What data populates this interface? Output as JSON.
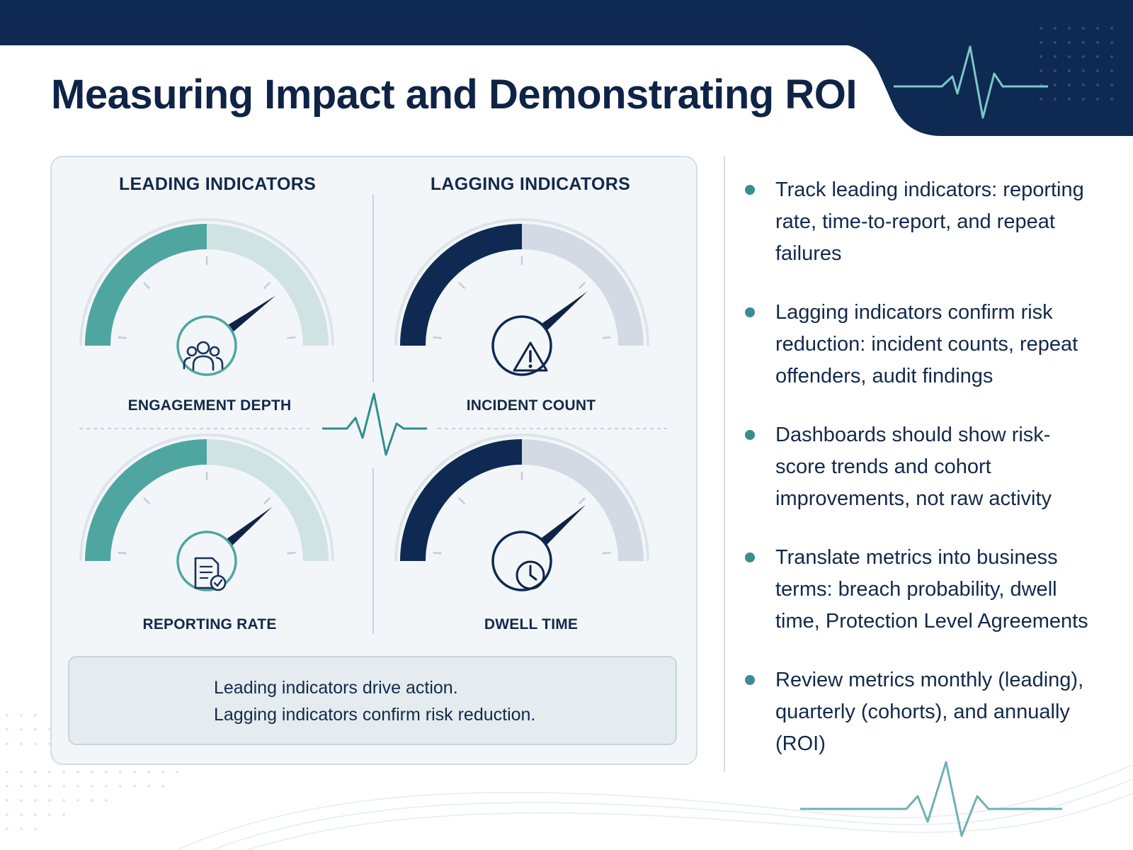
{
  "title": "Measuring Impact and Demonstrating ROI",
  "colors": {
    "navy": "#0f2a52",
    "teal": "#4fa6a1",
    "teal_light": "#cfe3e3",
    "navy_light": "#d3dae3",
    "text": "#13294b"
  },
  "headers": {
    "leading": "LEADING INDICATORS",
    "lagging": "LAGGING INDICATORS"
  },
  "gauges": [
    {
      "label": "ENGAGEMENT DEPTH",
      "group": "leading",
      "value": 0.5,
      "needle": 0.8,
      "icon": "people-icon"
    },
    {
      "label": "INCIDENT COUNT",
      "group": "lagging",
      "value": 0.5,
      "needle": 0.78,
      "icon": "warning-icon"
    },
    {
      "label": "REPORTING RATE",
      "group": "leading",
      "value": 0.5,
      "needle": 0.78,
      "icon": "document-check-icon"
    },
    {
      "label": "DWELL TIME",
      "group": "lagging",
      "value": 0.5,
      "needle": 0.77,
      "icon": "clock-icon"
    }
  ],
  "callout": {
    "icon": "shield-check-icon",
    "line1": "Leading indicators drive action.",
    "line2": "Lagging indicators confirm risk reduction."
  },
  "bullets": [
    "Track leading indicators: reporting rate, time-to-report, and repeat failures",
    "Lagging indicators confirm risk reduction: incident counts, repeat offenders, audit findings",
    "Dashboards should show risk-score trends and cohort improvements, not raw activity",
    "Translate metrics into business terms: breach probability, dwell time, Protection Level Agreements",
    "Review metrics monthly (leading), quarterly (cohorts), and annually (ROI)"
  ]
}
